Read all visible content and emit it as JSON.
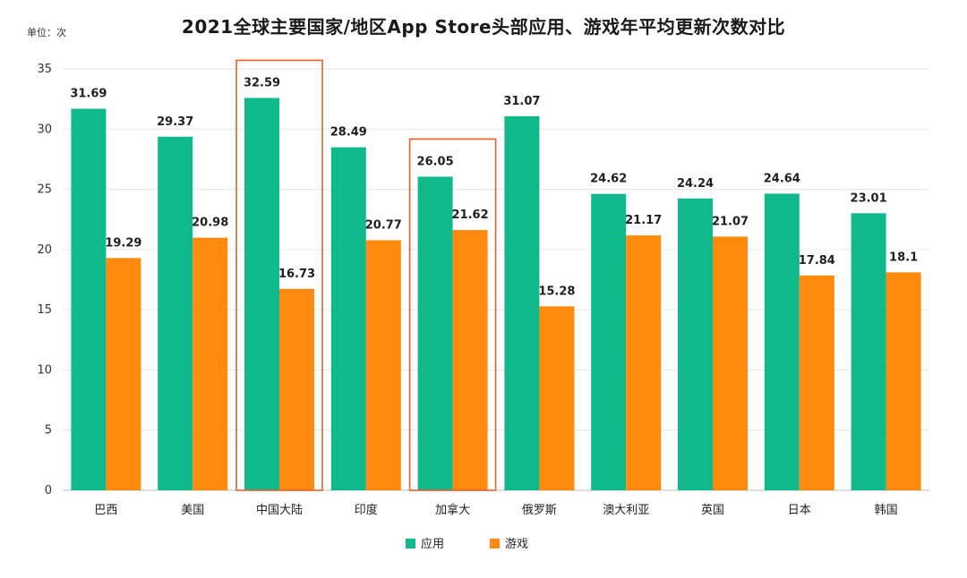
{
  "chart_data": {
    "type": "bar",
    "title": "2021全球主要国家/地区App Store头部应用、游戏年平均更新次数对比",
    "unit_label": "单位：次",
    "categories": [
      "巴西",
      "美国",
      "中国大陆",
      "印度",
      "加拿大",
      "俄罗斯",
      "澳大利亚",
      "英国",
      "日本",
      "韩国"
    ],
    "series": [
      {
        "name": "应用",
        "color": "#10b98c",
        "values": [
          31.69,
          29.37,
          32.59,
          28.49,
          26.05,
          31.07,
          24.62,
          24.24,
          24.64,
          23.01
        ],
        "labels": [
          "31.69",
          "29.37",
          "32.59",
          "28.49",
          "26.05",
          "31.07",
          "24.62",
          "24.24",
          "24.64",
          "23.01"
        ]
      },
      {
        "name": "游戏",
        "color": "#ff8a0d",
        "values": [
          19.29,
          20.98,
          16.73,
          20.77,
          21.62,
          15.28,
          21.17,
          21.07,
          17.84,
          18.1
        ],
        "labels": [
          "19.29",
          "20.98",
          "16.73",
          "20.77",
          "21.62",
          "15.28",
          "21.17",
          "21.07",
          "17.84",
          "18.1"
        ]
      }
    ],
    "ylim": [
      0,
      35
    ],
    "yticks": [
      0,
      5,
      10,
      15,
      20,
      25,
      30,
      35
    ],
    "ytick_labels": [
      "0",
      "5",
      "10",
      "15",
      "20",
      "25",
      "30",
      "35"
    ],
    "highlighted_categories": [
      "中国大陆",
      "加拿大"
    ],
    "highlight_color": "#e8602c",
    "grid": true,
    "legend_position": "bottom"
  }
}
